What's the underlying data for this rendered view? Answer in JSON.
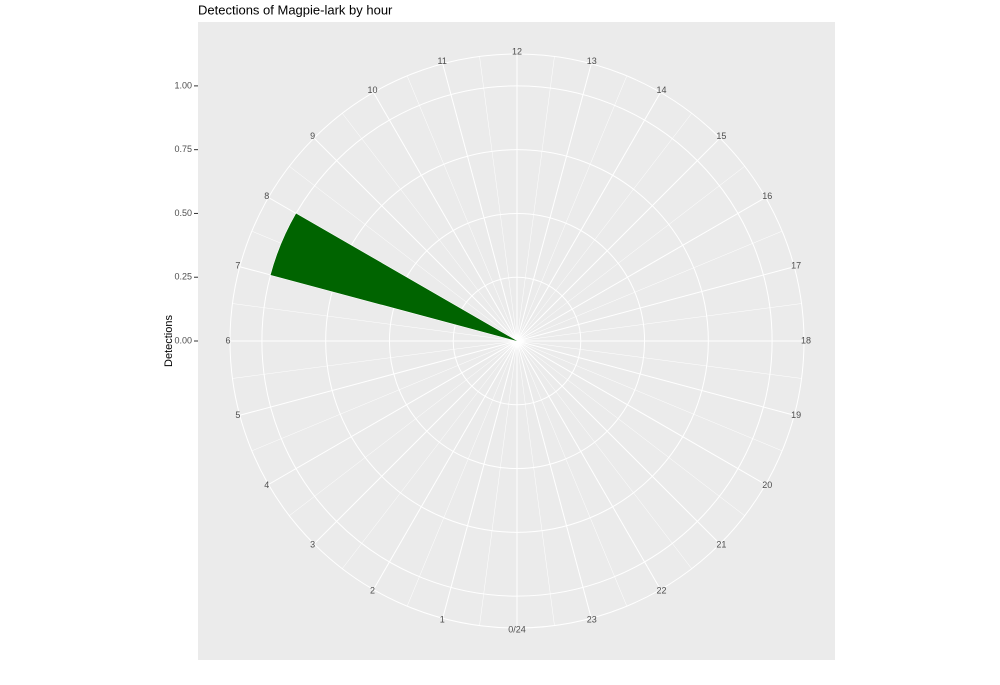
{
  "chart_data": {
    "type": "histogram",
    "title": "Detections of Magpie-lark by hour",
    "y_label": "Detections",
    "bins": [
      0,
      1,
      2,
      3,
      4,
      5,
      6,
      7,
      8,
      9,
      10,
      11,
      12,
      13,
      14,
      15,
      16,
      17,
      18,
      19,
      20,
      21,
      22,
      23,
      24
    ],
    "values": [
      0,
      0,
      0,
      0,
      0,
      0,
      0,
      1,
      0,
      0,
      0,
      0,
      0,
      0,
      0,
      0,
      0,
      0,
      0,
      0,
      0,
      0,
      0,
      0
    ],
    "color": "#006400",
    "xlim": [
      0,
      24
    ],
    "xticks": [
      {
        "value": 0,
        "label": "0/24"
      },
      1,
      2,
      3,
      4,
      5,
      6,
      7,
      8,
      9,
      10,
      11,
      12,
      13,
      14,
      15,
      16,
      17,
      18,
      19,
      20,
      21,
      22,
      23
    ],
    "ylim": [
      0,
      1.125
    ],
    "yticks": [
      {
        "value": 0,
        "label": "0.00"
      },
      {
        "value": 0.25,
        "label": "0.25"
      },
      {
        "value": 0.5,
        "label": "0.50"
      },
      {
        "value": 0.75,
        "label": "0.75"
      },
      {
        "value": 1,
        "label": "1.00"
      }
    ],
    "grid": true
  }
}
